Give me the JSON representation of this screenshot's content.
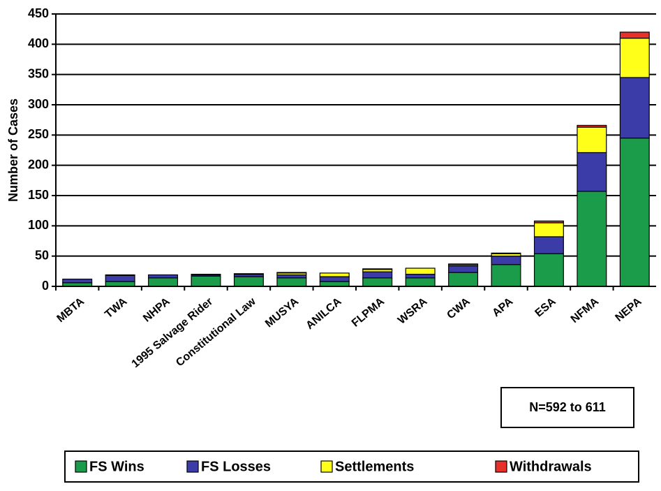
{
  "chart_data": {
    "type": "stacked_bar",
    "y_axis_label": "Number of Cases",
    "annotation": "N=592 to 611",
    "categories": [
      "MBTA",
      "TWA",
      "NHPA",
      "1995 Salvage Rider",
      "Constitutional Law",
      "MUSYA",
      "ANILCA",
      "FLPMA",
      "WSRA",
      "CWA",
      "APA",
      "ESA",
      "NFMA",
      "NEPA"
    ],
    "series": [
      {
        "name": "FS Wins",
        "color": "#1a9c4a",
        "values": [
          6,
          8,
          14,
          17,
          16,
          14,
          8,
          14,
          14,
          23,
          36,
          54,
          157,
          245
        ]
      },
      {
        "name": "FS Losses",
        "color": "#3c3ca8",
        "values": [
          6,
          10,
          5,
          2,
          4,
          5,
          8,
          10,
          6,
          11,
          14,
          28,
          64,
          100
        ]
      },
      {
        "name": "Settlements",
        "color": "#ffff1a",
        "values": [
          0,
          1,
          0,
          1,
          1,
          3,
          6,
          4,
          10,
          2,
          4,
          23,
          42,
          65
        ]
      },
      {
        "name": "Withdrawals",
        "color": "#e8302a",
        "values": [
          0,
          0,
          0,
          0,
          0,
          1,
          0,
          1,
          0,
          1,
          1,
          3,
          3,
          10
        ]
      }
    ],
    "ylim": [
      0,
      450
    ],
    "yticks": [
      0,
      50,
      100,
      150,
      200,
      250,
      300,
      350,
      400,
      450
    ],
    "grid": true,
    "legend": "bottom"
  }
}
